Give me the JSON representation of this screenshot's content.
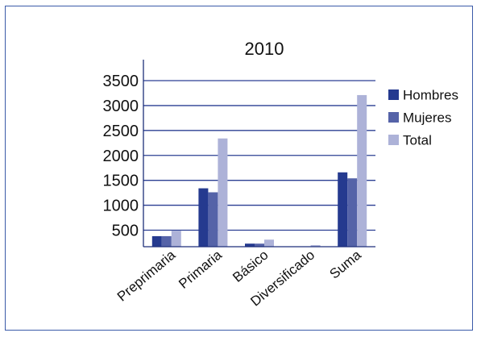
{
  "colors": {
    "frame": "#3a5aa8",
    "grid": "#2b3f93",
    "axis": "#1e2f7a"
  },
  "chart_data": {
    "type": "bar",
    "title": "2010",
    "xlabel": "",
    "ylabel": "",
    "categories": [
      "Preprimaria",
      "Primaria",
      "Básico",
      "Diversificado",
      "Suma"
    ],
    "yticks": [
      500,
      1000,
      1500,
      2000,
      2500,
      3000,
      3500
    ],
    "ylim": [
      250,
      3750
    ],
    "grid": true,
    "legend_position": "right",
    "series": [
      {
        "name": "Hombres",
        "color": "#253a8f",
        "values": [
          380,
          1340,
          230,
          150,
          1660
        ]
      },
      {
        "name": "Mujeres",
        "color": "#5563a8",
        "values": [
          380,
          1260,
          230,
          160,
          1540
        ]
      },
      {
        "name": "Total",
        "color": "#adb2d8",
        "values": [
          490,
          2340,
          310,
          200,
          3210
        ]
      }
    ]
  }
}
